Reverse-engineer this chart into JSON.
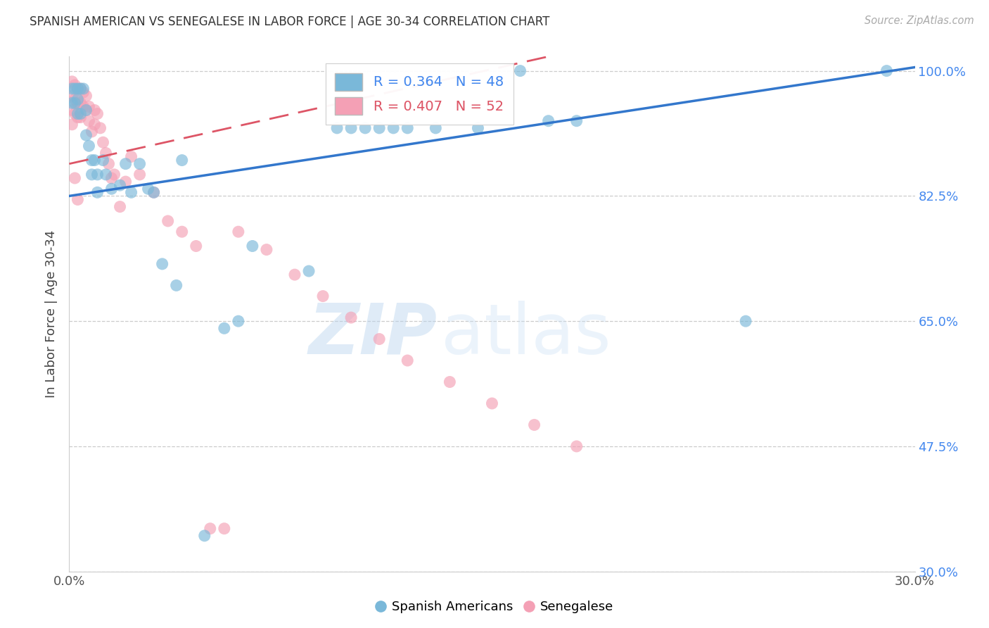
{
  "title": "SPANISH AMERICAN VS SENEGALESE IN LABOR FORCE | AGE 30-34 CORRELATION CHART",
  "source": "Source: ZipAtlas.com",
  "ylabel": "In Labor Force | Age 30-34",
  "xlim": [
    0.0,
    0.3
  ],
  "ylim": [
    0.3,
    1.02
  ],
  "ytick_vals": [
    1.0,
    0.825,
    0.65,
    0.475,
    0.3
  ],
  "ytick_labels": [
    "100.0%",
    "82.5%",
    "65.0%",
    "47.5%",
    "30.0%"
  ],
  "xtick_vals": [
    0.0,
    0.05,
    0.1,
    0.15,
    0.2,
    0.25,
    0.3
  ],
  "xtick_labels": [
    "0.0%",
    "",
    "",
    "",
    "",
    "",
    "30.0%"
  ],
  "blue_R": 0.364,
  "blue_N": 48,
  "pink_R": 0.407,
  "pink_N": 52,
  "blue_color": "#7ab8d9",
  "pink_color": "#f4a0b5",
  "blue_line_color": "#3377cc",
  "pink_line_color": "#dd5566",
  "watermark_zip": "ZIP",
  "watermark_atlas": "atlas",
  "blue_x": [
    0.001,
    0.001,
    0.002,
    0.002,
    0.003,
    0.003,
    0.003,
    0.004,
    0.004,
    0.005,
    0.006,
    0.006,
    0.007,
    0.008,
    0.008,
    0.009,
    0.01,
    0.01,
    0.012,
    0.013,
    0.015,
    0.018,
    0.02,
    0.022,
    0.025,
    0.028,
    0.03,
    0.033,
    0.038,
    0.04,
    0.048,
    0.055,
    0.06,
    0.065,
    0.085,
    0.095,
    0.1,
    0.105,
    0.11,
    0.115,
    0.12,
    0.13,
    0.145,
    0.16,
    0.17,
    0.18,
    0.24,
    0.29
  ],
  "blue_y": [
    0.975,
    0.955,
    0.975,
    0.955,
    0.975,
    0.96,
    0.94,
    0.975,
    0.94,
    0.975,
    0.945,
    0.91,
    0.895,
    0.875,
    0.855,
    0.875,
    0.855,
    0.83,
    0.875,
    0.855,
    0.835,
    0.84,
    0.87,
    0.83,
    0.87,
    0.835,
    0.83,
    0.73,
    0.7,
    0.875,
    0.35,
    0.64,
    0.65,
    0.755,
    0.72,
    0.92,
    0.92,
    0.92,
    0.92,
    0.92,
    0.92,
    0.92,
    0.92,
    1.0,
    0.93,
    0.93,
    0.65,
    1.0
  ],
  "pink_x": [
    0.001,
    0.001,
    0.001,
    0.001,
    0.002,
    0.002,
    0.002,
    0.003,
    0.003,
    0.003,
    0.004,
    0.004,
    0.004,
    0.005,
    0.005,
    0.006,
    0.006,
    0.007,
    0.007,
    0.008,
    0.009,
    0.009,
    0.01,
    0.011,
    0.012,
    0.013,
    0.014,
    0.015,
    0.016,
    0.018,
    0.02,
    0.022,
    0.025,
    0.03,
    0.035,
    0.04,
    0.045,
    0.05,
    0.055,
    0.06,
    0.07,
    0.08,
    0.09,
    0.1,
    0.11,
    0.12,
    0.135,
    0.15,
    0.165,
    0.18,
    0.002,
    0.003
  ],
  "pink_y": [
    0.985,
    0.965,
    0.945,
    0.925,
    0.98,
    0.96,
    0.94,
    0.975,
    0.955,
    0.935,
    0.975,
    0.955,
    0.935,
    0.97,
    0.95,
    0.965,
    0.945,
    0.95,
    0.93,
    0.915,
    0.945,
    0.925,
    0.94,
    0.92,
    0.9,
    0.885,
    0.87,
    0.85,
    0.855,
    0.81,
    0.845,
    0.88,
    0.855,
    0.83,
    0.79,
    0.775,
    0.755,
    0.36,
    0.36,
    0.775,
    0.75,
    0.715,
    0.685,
    0.655,
    0.625,
    0.595,
    0.565,
    0.535,
    0.505,
    0.475,
    0.85,
    0.82
  ],
  "blue_line_x": [
    0.0,
    0.3
  ],
  "blue_line_y": [
    0.825,
    1.005
  ],
  "pink_line_x": [
    0.0,
    0.17
  ],
  "pink_line_y": [
    0.87,
    1.02
  ]
}
